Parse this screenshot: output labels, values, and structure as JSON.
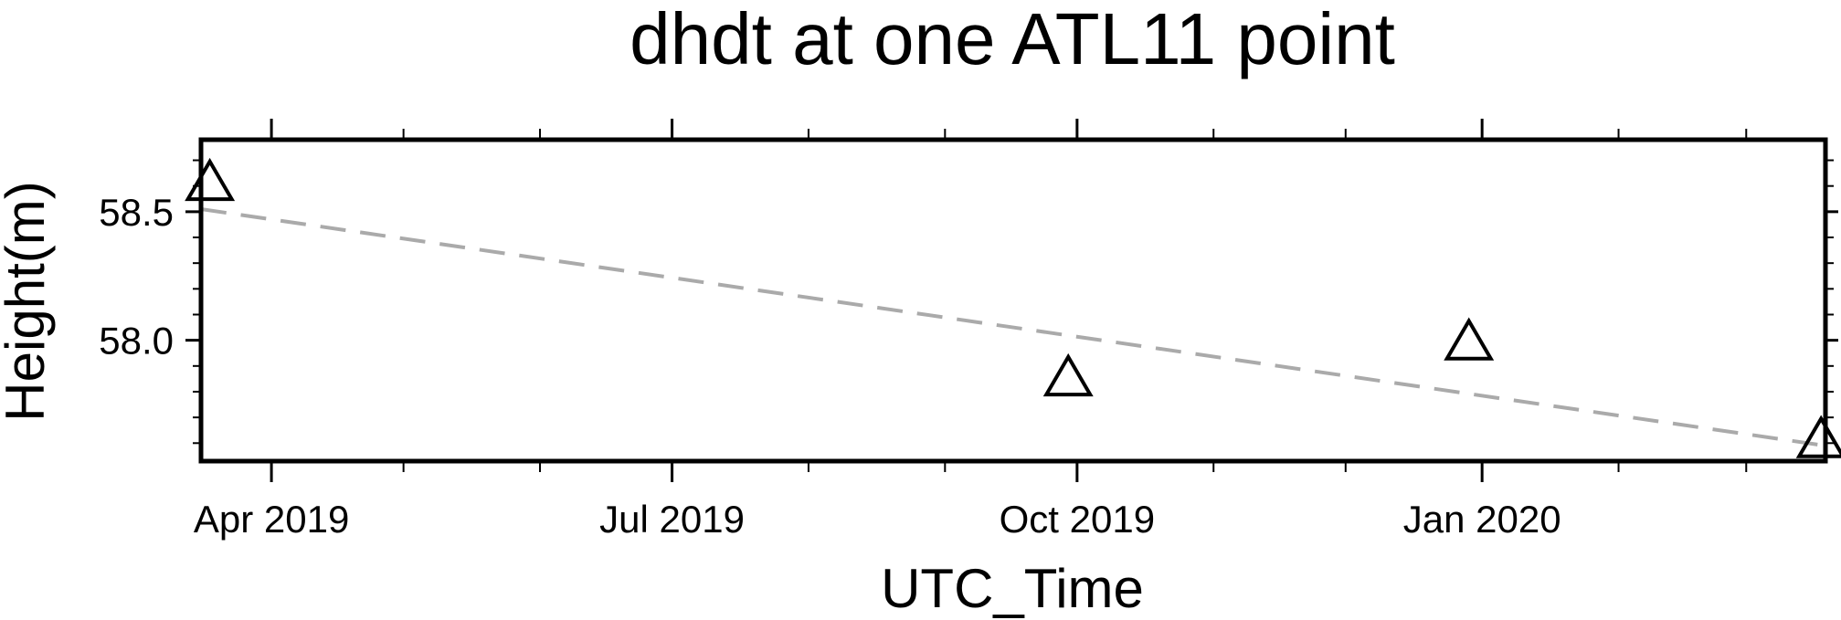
{
  "chart_data": {
    "type": "scatter",
    "title": "dhdt at one ATL11 point",
    "xlabel": "UTC_Time",
    "ylabel": "Height(m)",
    "x_axis_kind": "date",
    "xlim": [
      "2019-03-16",
      "2020-03-19"
    ],
    "ylim": [
      57.53,
      58.78
    ],
    "x_ticks": [
      {
        "date": "2019-04-01",
        "label": "Apr 2019"
      },
      {
        "date": "2019-07-01",
        "label": "Jul 2019"
      },
      {
        "date": "2019-10-01",
        "label": "Oct 2019"
      },
      {
        "date": "2020-01-01",
        "label": "Jan 2020"
      }
    ],
    "x_minor_ticks": [
      "2019-05-01",
      "2019-06-01",
      "2019-08-01",
      "2019-09-01",
      "2019-11-01",
      "2019-12-01",
      "2020-02-01",
      "2020-03-01"
    ],
    "y_ticks": [
      {
        "value": 58.0,
        "label": "58.0"
      },
      {
        "value": 58.5,
        "label": "58.5"
      }
    ],
    "y_minor_step": 0.1,
    "points": [
      {
        "x": "2019-03-18",
        "y": 58.61
      },
      {
        "x": "2019-09-29",
        "y": 57.85
      },
      {
        "x": "2019-12-29",
        "y": 57.99
      },
      {
        "x": "2020-03-18",
        "y": 57.61
      }
    ],
    "marker": "open-triangle",
    "trend_line": {
      "style": "dashed",
      "color": "#aaaaaa",
      "start": {
        "x": "2019-03-16",
        "y": 58.51
      },
      "end": {
        "x": "2020-03-19",
        "y": 57.59
      }
    },
    "grid": false,
    "legend": "none"
  }
}
